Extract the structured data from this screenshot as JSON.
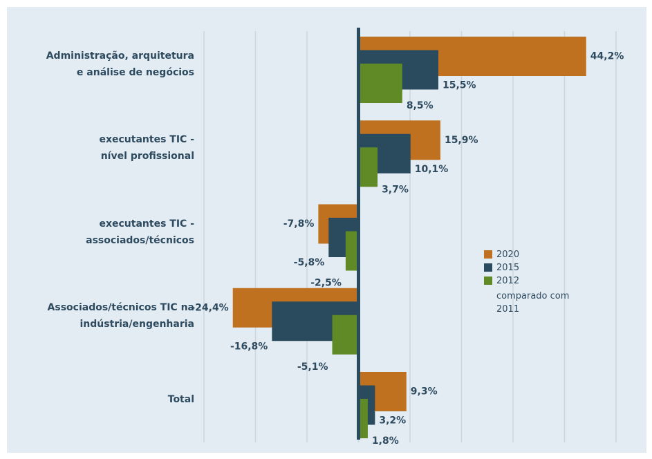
{
  "chart_data": {
    "type": "hbar",
    "categories": [
      "Administração, arquitetura\ne análise de negócios",
      "executantes TIC -\nnível profissional",
      "executantes TIC -\nassociados/técnicos",
      "Associados/técnicos TIC na\nindústria/engenharia",
      "Total"
    ],
    "series": [
      {
        "name": "2020",
        "color": "#c0711f",
        "values": [
          44.2,
          15.9,
          -7.8,
          -24.4,
          9.3
        ],
        "value_labels": [
          "44,2%",
          "15,9%",
          "-7,8%",
          "-24,4%",
          "9,3%"
        ]
      },
      {
        "name": "2015",
        "color": "#2a4a5e",
        "values": [
          15.5,
          10.1,
          -5.8,
          -16.8,
          3.2
        ],
        "value_labels": [
          "15,5%",
          "10,1%",
          "-5,8%",
          "-16,8%",
          "3,2%"
        ]
      },
      {
        "name": "2012",
        "color": "#5f8a25",
        "values": [
          8.5,
          3.7,
          -2.5,
          -5.1,
          1.8
        ],
        "value_labels": [
          "8,5%",
          "3,7%",
          "-2,5%",
          "-5,1%",
          "1,8%"
        ]
      }
    ],
    "legend_note": "comparado com\n2011",
    "xlim": [
      -30,
      50
    ],
    "xticks": [
      -30,
      -20,
      -10,
      0,
      10,
      20,
      30,
      40,
      50
    ],
    "grid": true
  }
}
